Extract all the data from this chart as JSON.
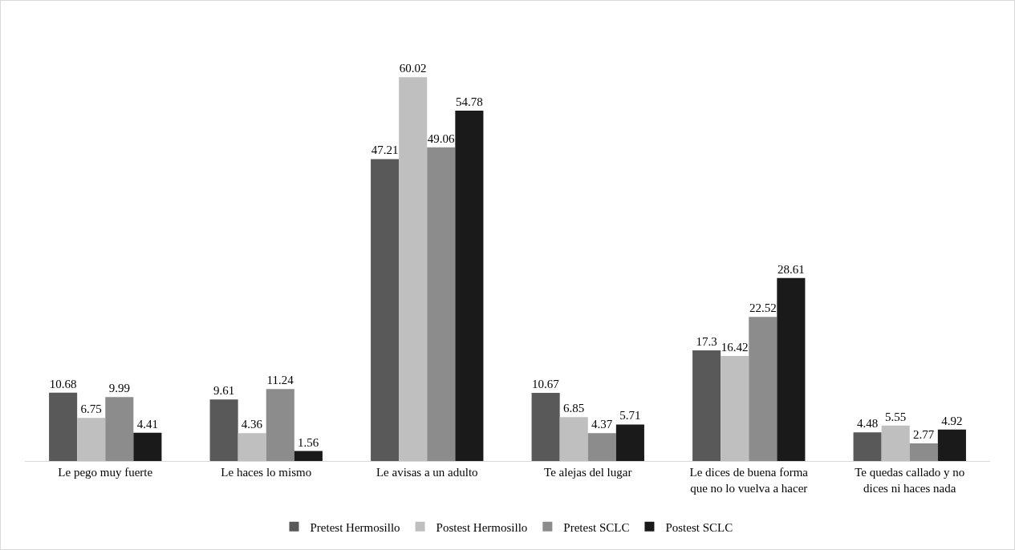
{
  "chart_data": {
    "type": "bar",
    "categories": [
      "Le pego muy fuerte",
      "Le haces lo mismo",
      "Le avisas a un adulto",
      "Te alejas del lugar",
      "Le dices de buena forma que no lo vuelva a hacer",
      "Te quedas callado y no dices ni haces nada"
    ],
    "series": [
      {
        "name": "Pretest Hermosillo",
        "color": "#595959",
        "values": [
          10.68,
          9.61,
          47.21,
          10.67,
          17.3,
          4.48
        ]
      },
      {
        "name": "Postest Hermosillo",
        "color": "#bfbfbf",
        "values": [
          6.75,
          4.36,
          60.02,
          6.85,
          16.42,
          5.55
        ]
      },
      {
        "name": "Pretest SCLC",
        "color": "#8c8c8c",
        "values": [
          9.99,
          11.24,
          49.06,
          4.37,
          22.52,
          2.77
        ]
      },
      {
        "name": "Postest SCLC",
        "color": "#1a1a1a",
        "values": [
          4.41,
          1.56,
          54.78,
          5.71,
          28.61,
          4.92
        ]
      }
    ],
    "data_labels": true,
    "legend": "bottom"
  }
}
